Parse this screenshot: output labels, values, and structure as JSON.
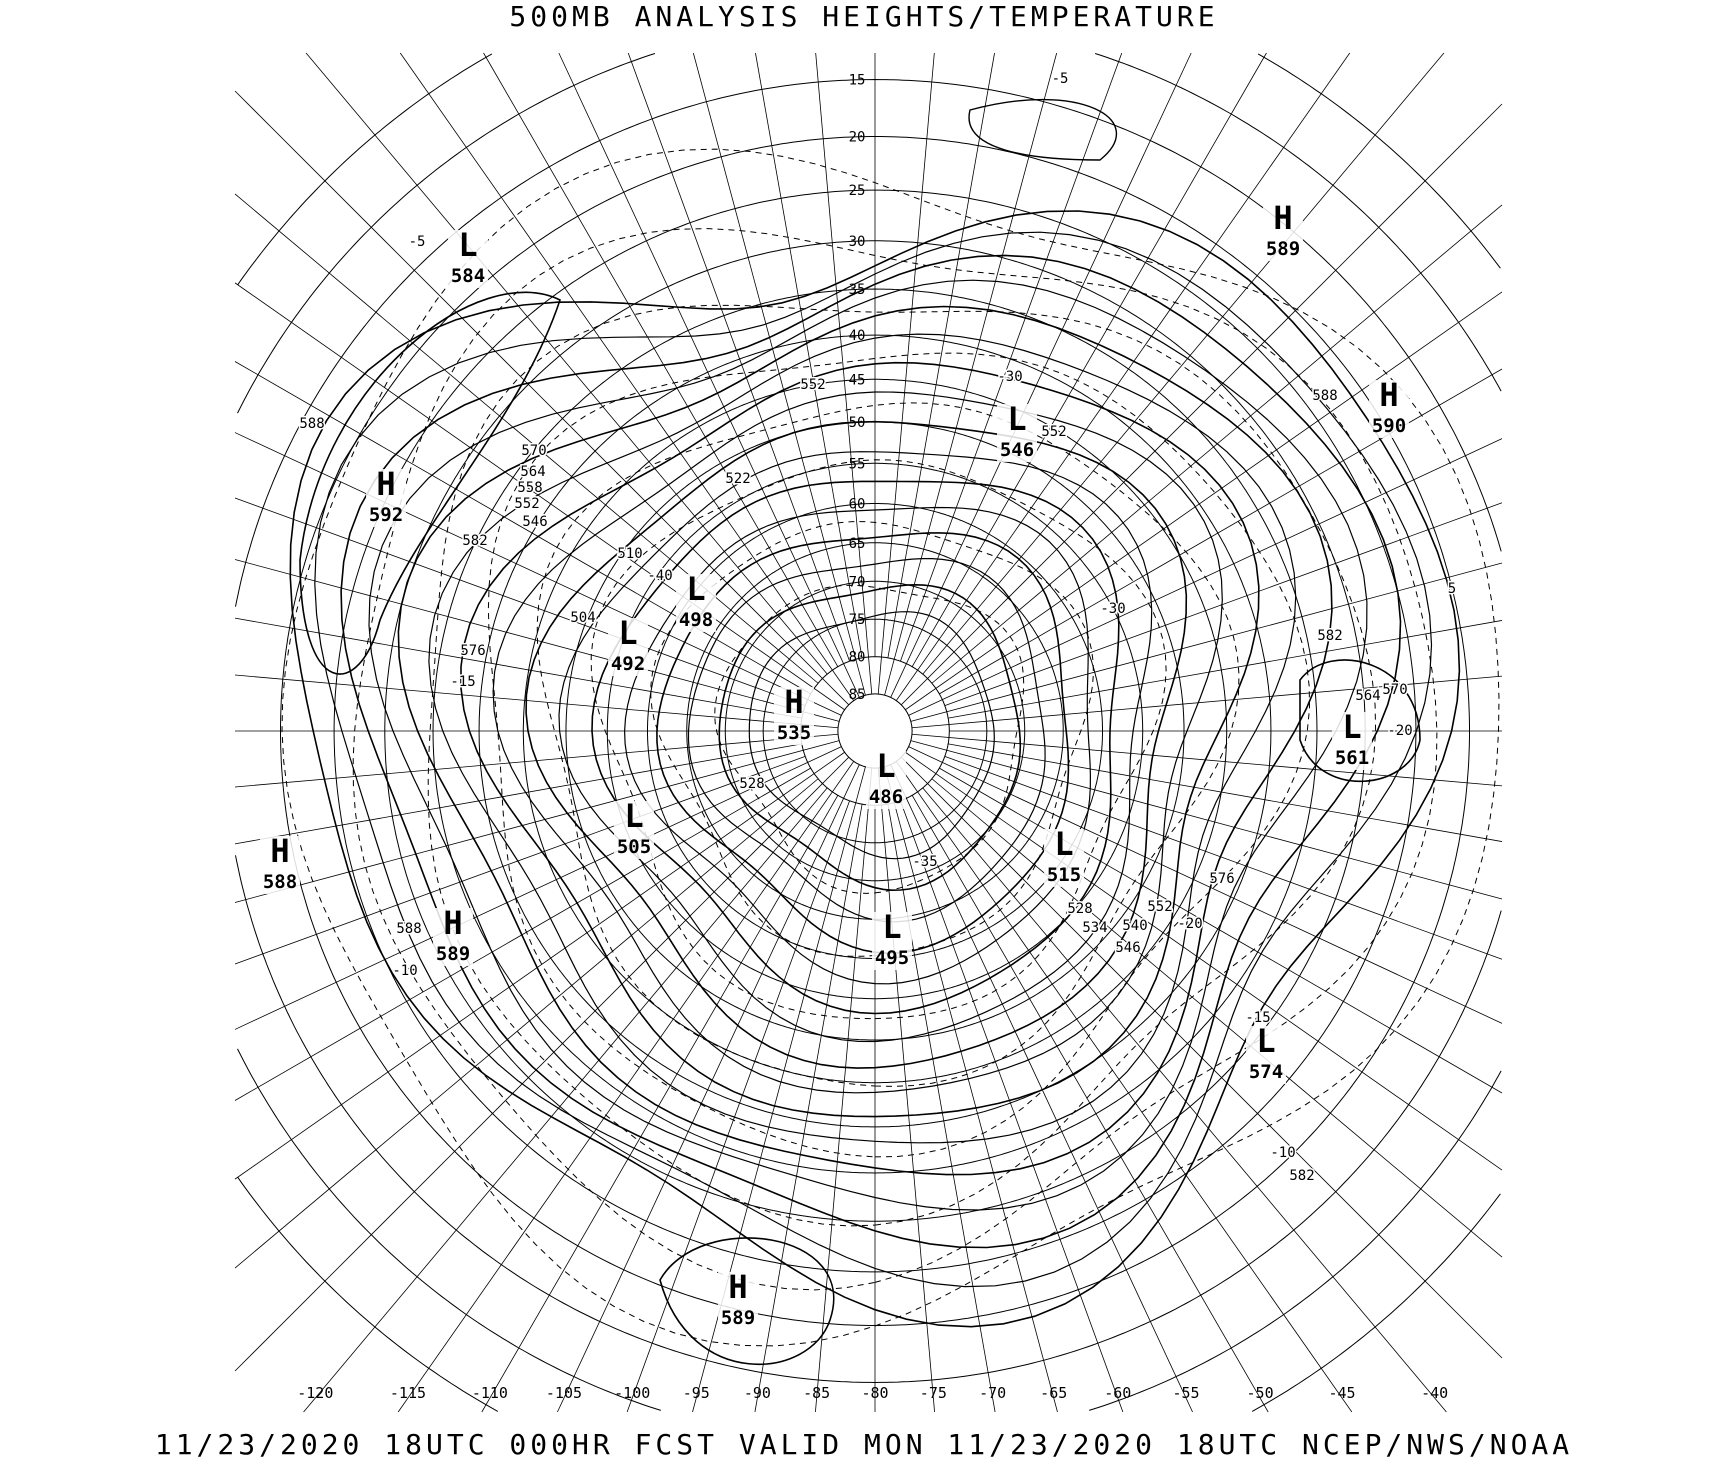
{
  "title": "500MB ANALYSIS  HEIGHTS/TEMPERATURE",
  "footer": "11/23/2020 18UTC 000HR FCST VALID MON 11/23/2020 18UTC  NCEP/NWS/NOAA",
  "map": {
    "projection": "polar stereographic, north pole",
    "latitude_labels": [
      "15",
      "20",
      "25",
      "30",
      "35",
      "40",
      "45",
      "50",
      "55",
      "60",
      "65",
      "70",
      "75",
      "80",
      "85"
    ],
    "longitude_labels": [
      "-120",
      "-115",
      "-110",
      "-105",
      "-100",
      "-95",
      "-90",
      "-85",
      "-80",
      "-75",
      "-70",
      "-65",
      "-60",
      "-55",
      "-50",
      "-45",
      "-40"
    ],
    "height_contour_interval_dam": 6,
    "temperature_contour_style": "dashed",
    "pressure_centers": [
      {
        "type": "L",
        "value": "584"
      },
      {
        "type": "H",
        "value": "589"
      },
      {
        "type": "H",
        "value": "590"
      },
      {
        "type": "H",
        "value": "592"
      },
      {
        "type": "L",
        "value": "546"
      },
      {
        "type": "L",
        "value": "498"
      },
      {
        "type": "L",
        "value": "492"
      },
      {
        "type": "H",
        "value": "535"
      },
      {
        "type": "L",
        "value": "486"
      },
      {
        "type": "L",
        "value": "561"
      },
      {
        "type": "L",
        "value": "505"
      },
      {
        "type": "L",
        "value": "515"
      },
      {
        "type": "H",
        "value": "588"
      },
      {
        "type": "H",
        "value": "589"
      },
      {
        "type": "L",
        "value": "495"
      },
      {
        "type": "L",
        "value": "574"
      },
      {
        "type": "H",
        "value": "589"
      }
    ],
    "contour_labels": [
      "588",
      "582",
      "576",
      "-15",
      "-5",
      "-5",
      "588",
      "-30",
      "552",
      "552",
      "570",
      "564",
      "558",
      "552",
      "546",
      "522",
      "510",
      "504",
      "528",
      "-10",
      "588",
      "582",
      "576",
      "-15",
      "-10",
      "582",
      "570",
      "564",
      "552",
      "546",
      "540",
      "534",
      "528",
      "-20",
      "-30",
      "-40",
      "-35",
      "5",
      "-20"
    ]
  }
}
